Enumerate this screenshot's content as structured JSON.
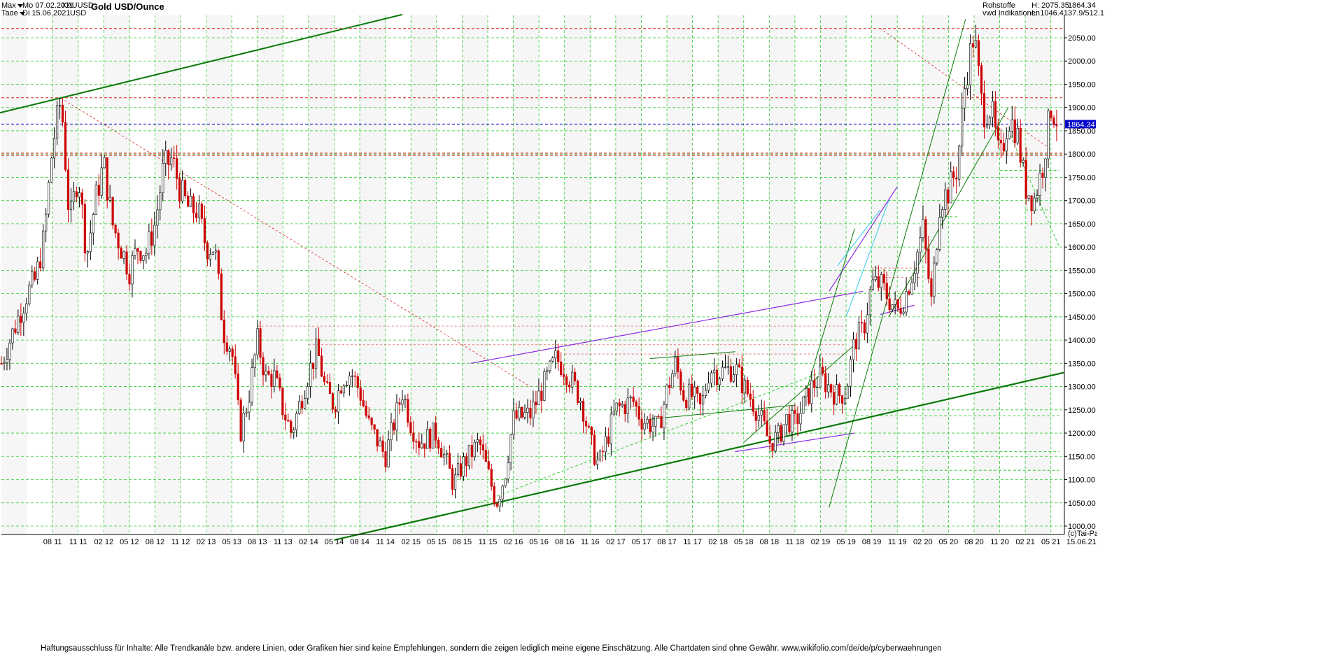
{
  "header": {
    "range_label": "Max",
    "interval_label": "Tage",
    "date_from": "Mo 07.02.2011",
    "date_to": "Di 15.06.2021",
    "symbol": "XAUUSD",
    "currency": "USD",
    "title": "Gold USD/Ounce",
    "category": "Rohstoffe",
    "source": "vwd Indikationen",
    "high": "H: 2075.35",
    "low": "L: 1046.41",
    "last_top": "1864.34",
    "ratio": "37.9/512.1"
  },
  "footer": {
    "disclaimer": "Haftungsausschluss für Inhalte: Alle Trendkanäle bzw. andere Linien, oder Grafiken hier sind keine Empfehlungen, sondern die zeigen lediglich meine eigene Einschätzung. Alle Chartdaten sind ohne Gewähr.  www.wikifolio.com/de/de/p/cyberwaehrungen",
    "credit": "(c)Tai-Pan",
    "end_date": "15.06.21"
  },
  "colors": {
    "candle_up": "#000000",
    "candle_down": "#cc0000",
    "grid": "#33cc33",
    "support_line": "#0a7a0a",
    "channel_purple": "#8a2be2",
    "channel_cyan": "#33ccee",
    "resistance_red": "#dd2222",
    "price_tag": "#0000cc"
  },
  "chart_data": {
    "type": "candlestick",
    "title": "Gold USD/Ounce",
    "y_scale": "linear",
    "ylim": [
      990,
      2100
    ],
    "y_ticks": [
      1000,
      1050,
      1100,
      1150,
      1200,
      1250,
      1300,
      1350,
      1400,
      1450,
      1500,
      1550,
      1600,
      1650,
      1700,
      1750,
      1800,
      1850,
      1900,
      1950,
      2000,
      2050
    ],
    "x_ticks": [
      "08 11",
      "11 11",
      "02 12",
      "05 12",
      "08 12",
      "11 12",
      "02 13",
      "05 13",
      "08 13",
      "11 13",
      "02 14",
      "05 14",
      "08 14",
      "11 14",
      "02 15",
      "05 15",
      "08 15",
      "11 15",
      "02 16",
      "05 16",
      "08 16",
      "11 16",
      "02 17",
      "05 17",
      "08 17",
      "11 17",
      "02 18",
      "05 18",
      "08 18",
      "11 18",
      "02 19",
      "05 19",
      "08 19",
      "11 19",
      "02 20",
      "05 20",
      "08 20",
      "11 20",
      "02 21",
      "05 21"
    ],
    "grid": true,
    "last_price": 1864.34,
    "high": 2075.35,
    "low": 1046.41,
    "price_path": [
      [
        "02 11",
        1350
      ],
      [
        "05 11",
        1500
      ],
      [
        "06 11",
        1530
      ],
      [
        "07 11",
        1620
      ],
      [
        "08 11",
        1820
      ],
      [
        "09 11",
        1920
      ],
      [
        "10 11",
        1650
      ],
      [
        "11 11",
        1760
      ],
      [
        "12 11",
        1580
      ],
      [
        "01 12",
        1700
      ],
      [
        "02 12",
        1780
      ],
      [
        "03 12",
        1650
      ],
      [
        "05 12",
        1550
      ],
      [
        "06 12",
        1600
      ],
      [
        "07 12",
        1590
      ],
      [
        "08 12",
        1650
      ],
      [
        "09 12",
        1770
      ],
      [
        "10 12",
        1790
      ],
      [
        "11 12",
        1720
      ],
      [
        "12 12",
        1680
      ],
      [
        "01 13",
        1680
      ],
      [
        "02 13",
        1600
      ],
      [
        "03 13",
        1600
      ],
      [
        "04 13",
        1420
      ],
      [
        "05 13",
        1380
      ],
      [
        "06 13",
        1200
      ],
      [
        "07 13",
        1280
      ],
      [
        "08 13",
        1400
      ],
      [
        "09 13",
        1320
      ],
      [
        "10 13",
        1320
      ],
      [
        "11 13",
        1250
      ],
      [
        "12 13",
        1200
      ],
      [
        "02 14",
        1330
      ],
      [
        "03 14",
        1380
      ],
      [
        "04 14",
        1290
      ],
      [
        "05 14",
        1260
      ],
      [
        "06 14",
        1320
      ],
      [
        "07 14",
        1330
      ],
      [
        "08 14",
        1290
      ],
      [
        "09 14",
        1220
      ],
      [
        "11 14",
        1150
      ],
      [
        "01 15",
        1290
      ],
      [
        "02 15",
        1220
      ],
      [
        "03 15",
        1180
      ],
      [
        "05 15",
        1200
      ],
      [
        "07 15",
        1090
      ],
      [
        "08 15",
        1130
      ],
      [
        "10 15",
        1180
      ],
      [
        "12 15",
        1050
      ],
      [
        "01 16",
        1110
      ],
      [
        "02 16",
        1230
      ],
      [
        "04 16",
        1240
      ],
      [
        "05 16",
        1280
      ],
      [
        "07 16",
        1360
      ],
      [
        "08 16",
        1340
      ],
      [
        "10 16",
        1270
      ],
      [
        "11 16",
        1180
      ],
      [
        "12 16",
        1130
      ],
      [
        "02 17",
        1250
      ],
      [
        "04 17",
        1270
      ],
      [
        "05 17",
        1230
      ],
      [
        "07 17",
        1210
      ],
      [
        "08 17",
        1290
      ],
      [
        "09 17",
        1350
      ],
      [
        "10 17",
        1280
      ],
      [
        "11 17",
        1280
      ],
      [
        "12 17",
        1250
      ],
      [
        "01 18",
        1340
      ],
      [
        "02 18",
        1330
      ],
      [
        "04 18",
        1340
      ],
      [
        "05 18",
        1300
      ],
      [
        "06 18",
        1270
      ],
      [
        "07 18",
        1230
      ],
      [
        "08 18",
        1180
      ],
      [
        "09 18",
        1190
      ],
      [
        "10 18",
        1230
      ],
      [
        "11 18",
        1220
      ],
      [
        "12 18",
        1260
      ],
      [
        "01 19",
        1300
      ],
      [
        "02 19",
        1320
      ],
      [
        "03 19",
        1300
      ],
      [
        "04 19",
        1280
      ],
      [
        "05 19",
        1290
      ],
      [
        "06 19",
        1400
      ],
      [
        "07 19",
        1420
      ],
      [
        "08 19",
        1520
      ],
      [
        "09 19",
        1520
      ],
      [
        "10 19",
        1490
      ],
      [
        "11 19",
        1460
      ],
      [
        "12 19",
        1500
      ],
      [
        "01 20",
        1560
      ],
      [
        "02 20",
        1640
      ],
      [
        "03 20",
        1480
      ],
      [
        "04 20",
        1700
      ],
      [
        "05 20",
        1720
      ],
      [
        "06 20",
        1770
      ],
      [
        "07 20",
        1960
      ],
      [
        "08 20",
        2060
      ],
      [
        "09 20",
        1890
      ],
      [
        "10 20",
        1900
      ],
      [
        "11 20",
        1780
      ],
      [
        "12 20",
        1880
      ],
      [
        "01 21",
        1850
      ],
      [
        "02 21",
        1730
      ],
      [
        "03 21",
        1700
      ],
      [
        "04 21",
        1770
      ],
      [
        "05 21",
        1900
      ],
      [
        "06 21",
        1864
      ]
    ],
    "horizontal_levels": [
      {
        "value": 2070,
        "style": "red-dashed"
      },
      {
        "value": 1921,
        "style": "red-dashed"
      },
      {
        "value": 1864.34,
        "style": "blue-dashed"
      },
      {
        "value": 1802,
        "style": "red-dashed"
      },
      {
        "value": 1797,
        "style": "red-dashed"
      }
    ]
  }
}
